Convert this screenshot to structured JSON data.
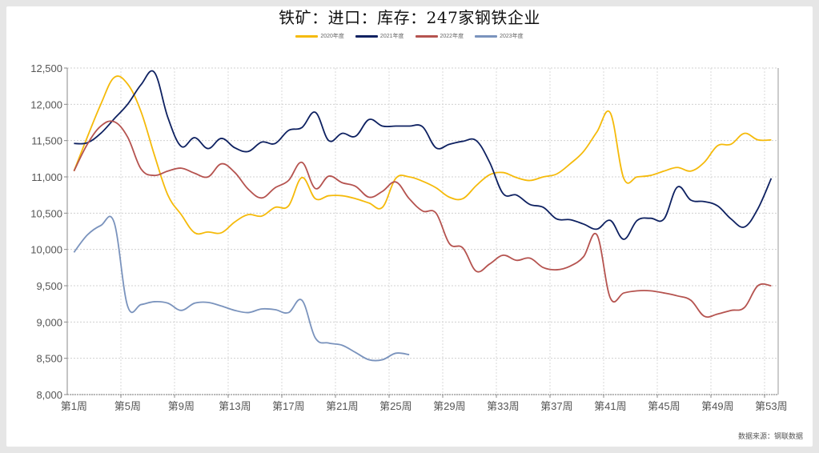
{
  "page": {
    "title": "铁矿：进口：库存：247家钢铁企业",
    "source": "数据来源：钢联数据"
  },
  "legend": [
    {
      "label": "2020年度",
      "color": "#F5BA0A"
    },
    {
      "label": "2021年度",
      "color": "#0E2161"
    },
    {
      "label": "2022年度",
      "color": "#B5534F"
    },
    {
      "label": "2023年度",
      "color": "#7A93BD"
    }
  ],
  "chart_data": {
    "type": "line",
    "title": "铁矿：进口：库存：247家钢铁企业",
    "xlabel": "",
    "ylabel": "",
    "ylim": [
      8000,
      12500
    ],
    "yticks": [
      8000,
      8500,
      9000,
      9500,
      10000,
      10500,
      11000,
      11500,
      12000,
      12500
    ],
    "ytick_labels": [
      "8,000",
      "8,500",
      "9,000",
      "9,500",
      "10,000",
      "10,500",
      "11,000",
      "11,500",
      "12,000",
      "12,500"
    ],
    "xtick_labels": [
      "第1周",
      "第5周",
      "第9周",
      "第13周",
      "第17周",
      "第21周",
      "第25周",
      "第29周",
      "第33周",
      "第37周",
      "第41周",
      "第45周",
      "第49周",
      "第53周"
    ],
    "grid": true,
    "legend_position": "top",
    "x": [
      "第1周",
      "第2周",
      "第3周",
      "第4周",
      "第5周",
      "第6周",
      "第7周",
      "第8周",
      "第9周",
      "第10周",
      "第11周",
      "第12周",
      "第13周",
      "第14周",
      "第15周",
      "第16周",
      "第17周",
      "第18周",
      "第19周",
      "第20周",
      "第21周",
      "第22周",
      "第23周",
      "第24周",
      "第25周",
      "第26周",
      "第27周",
      "第28周",
      "第29周",
      "第30周",
      "第31周",
      "第32周",
      "第33周",
      "第34周",
      "第35周",
      "第36周",
      "第37周",
      "第38周",
      "第39周",
      "第40周",
      "第41周",
      "第42周",
      "第43周",
      "第44周",
      "第45周",
      "第46周",
      "第47周",
      "第48周",
      "第49周",
      "第50周",
      "第51周",
      "第52周",
      "第53周"
    ],
    "series": [
      {
        "name": "2020年度",
        "color": "#F5BA0A",
        "values": [
          11080,
          11550,
          12000,
          12370,
          12280,
          11900,
          11300,
          10750,
          10480,
          10230,
          10240,
          10230,
          10380,
          10480,
          10460,
          10580,
          10600,
          10990,
          10700,
          10740,
          10740,
          10700,
          10640,
          10580,
          10980,
          11000,
          10940,
          10850,
          10720,
          10700,
          10880,
          11030,
          11060,
          10990,
          10950,
          11000,
          11040,
          11180,
          11350,
          11620,
          11880,
          10980,
          11000,
          11020,
          11080,
          11130,
          11080,
          11200,
          11430,
          11450,
          11600,
          11510,
          11510
        ]
      },
      {
        "name": "2021年度",
        "color": "#0E2161",
        "values": [
          11460,
          11470,
          11600,
          11800,
          12000,
          12270,
          12440,
          11820,
          11420,
          11540,
          11390,
          11530,
          11400,
          11350,
          11480,
          11460,
          11640,
          11680,
          11890,
          11500,
          11600,
          11560,
          11790,
          11700,
          11700,
          11700,
          11690,
          11400,
          11450,
          11490,
          11500,
          11200,
          10770,
          10750,
          10620,
          10580,
          10420,
          10410,
          10350,
          10280,
          10400,
          10140,
          10400,
          10430,
          10420,
          10860,
          10680,
          10660,
          10600,
          10420,
          10310,
          10560,
          10980
        ]
      },
      {
        "name": "2022年度",
        "color": "#B5534F",
        "values": [
          11080,
          11450,
          11700,
          11760,
          11550,
          11110,
          11020,
          11080,
          11120,
          11050,
          11000,
          11180,
          11060,
          10830,
          10710,
          10850,
          10950,
          11200,
          10840,
          11010,
          10920,
          10870,
          10720,
          10800,
          10930,
          10700,
          10530,
          10500,
          10080,
          10020,
          9700,
          9800,
          9920,
          9850,
          9880,
          9750,
          9720,
          9770,
          9900,
          10200,
          9330,
          9400,
          9430,
          9430,
          9400,
          9360,
          9300,
          9080,
          9110,
          9160,
          9200,
          9500,
          9500
        ]
      },
      {
        "name": "2023年度",
        "color": "#7A93BD",
        "values": [
          9960,
          10200,
          10330,
          10370,
          9220,
          9240,
          9280,
          9260,
          9160,
          9260,
          9270,
          9220,
          9160,
          9130,
          9180,
          9170,
          9130,
          9300,
          8780,
          8710,
          8680,
          8580,
          8480,
          8480,
          8570,
          8550
        ]
      }
    ]
  }
}
